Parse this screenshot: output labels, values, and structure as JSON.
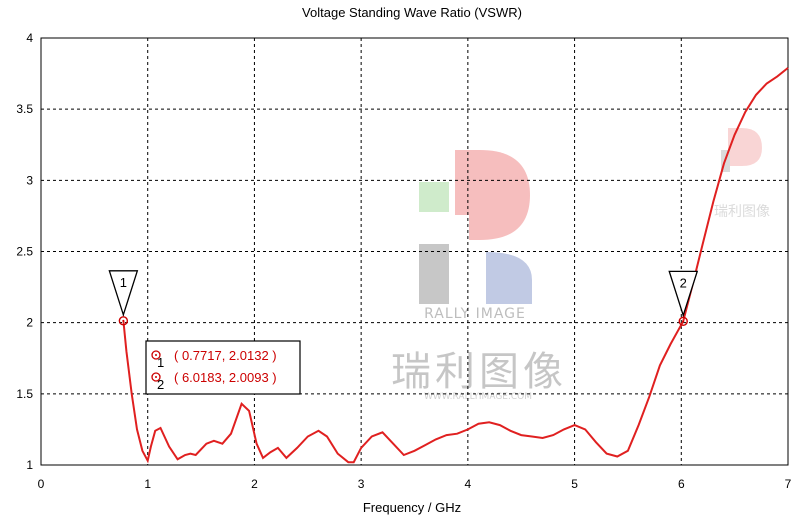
{
  "chart_data": {
    "type": "line",
    "title": "Voltage Standing Wave Ratio (VSWR)",
    "xlabel": "Frequency / GHz",
    "ylabel": "",
    "xlim": [
      0,
      7
    ],
    "ylim": [
      1,
      4
    ],
    "xticks": [
      "0",
      "1",
      "2",
      "3",
      "4",
      "5",
      "6",
      "7"
    ],
    "yticks": [
      "1",
      "1.5",
      "2",
      "2.5",
      "3",
      "3.5",
      "4"
    ],
    "grid": true,
    "line_color": "#e02020",
    "series": [
      {
        "x": [
          0.7717,
          0.8,
          0.85,
          0.9,
          0.95,
          1.0,
          1.03,
          1.07,
          1.12,
          1.2,
          1.28,
          1.35,
          1.4,
          1.45,
          1.55,
          1.62,
          1.7,
          1.78,
          1.88,
          1.95,
          2.02,
          2.08,
          2.15,
          2.22,
          2.3,
          2.4,
          2.5,
          2.6,
          2.68,
          2.78,
          2.88,
          2.93,
          3.0,
          3.1,
          3.2,
          3.3,
          3.4,
          3.5,
          3.6,
          3.7,
          3.8,
          3.9,
          4.0,
          4.1,
          4.2,
          4.3,
          4.4,
          4.5,
          4.6,
          4.7,
          4.8,
          4.9,
          5.0,
          5.1,
          5.2,
          5.3,
          5.4,
          5.5,
          5.6,
          5.7,
          5.8,
          5.9,
          6.0183,
          6.1,
          6.2,
          6.3,
          6.4,
          6.5,
          6.6,
          6.7,
          6.8,
          6.9,
          7.0
        ],
        "y": [
          2.0132,
          1.8,
          1.5,
          1.25,
          1.1,
          1.03,
          1.13,
          1.24,
          1.26,
          1.13,
          1.04,
          1.07,
          1.08,
          1.07,
          1.15,
          1.17,
          1.15,
          1.22,
          1.43,
          1.38,
          1.15,
          1.05,
          1.09,
          1.12,
          1.05,
          1.12,
          1.2,
          1.24,
          1.2,
          1.08,
          1.02,
          1.02,
          1.12,
          1.2,
          1.23,
          1.15,
          1.07,
          1.1,
          1.14,
          1.18,
          1.21,
          1.22,
          1.25,
          1.29,
          1.3,
          1.28,
          1.24,
          1.21,
          1.2,
          1.19,
          1.21,
          1.25,
          1.28,
          1.25,
          1.16,
          1.08,
          1.06,
          1.1,
          1.28,
          1.48,
          1.7,
          1.85,
          2.0093,
          2.25,
          2.55,
          2.85,
          3.12,
          3.32,
          3.48,
          3.6,
          3.68,
          3.73,
          3.79
        ]
      }
    ],
    "markers": [
      {
        "id": "1",
        "x": 0.7717,
        "y": 2.0132,
        "readout": "( 0.7717, 2.0132 )"
      },
      {
        "id": "2",
        "x": 6.0183,
        "y": 2.0093,
        "readout": "( 6.0183, 2.0093 )"
      }
    ]
  },
  "watermark": {
    "brand": "RALLY IMAGE",
    "chinese": "瑞利图像",
    "url": "WWW.RALLYIMAGE.COM"
  }
}
